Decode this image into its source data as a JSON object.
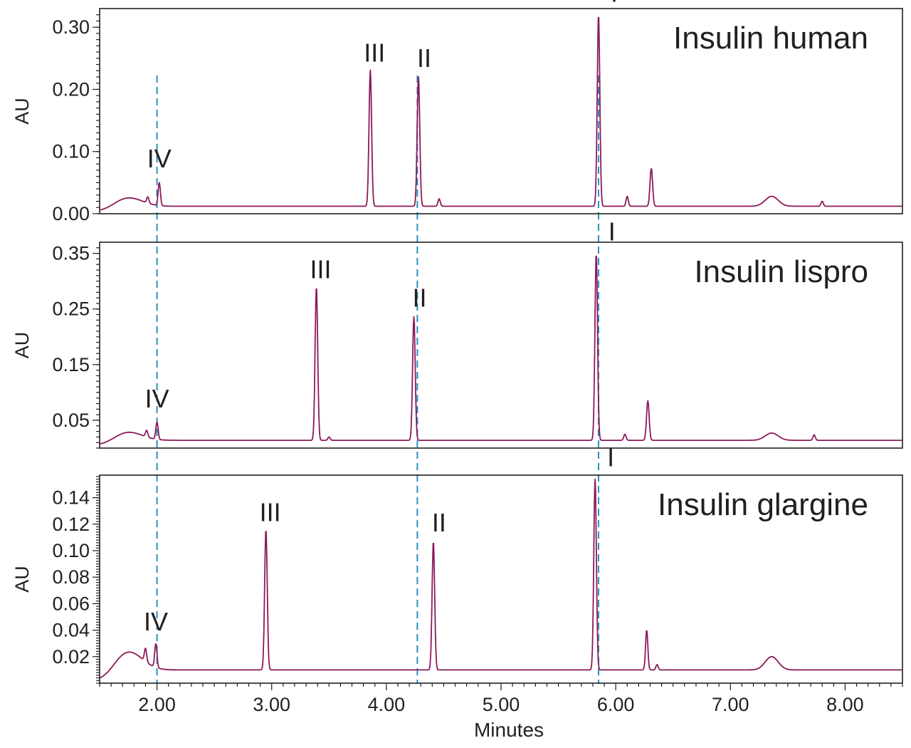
{
  "chart_data": {
    "type": "line",
    "xlabel": "Minutes",
    "xlim": [
      1.5,
      8.5
    ],
    "xticks": [
      "2.00",
      "3.00",
      "4.00",
      "5.00",
      "6.00",
      "7.00",
      "8.00"
    ],
    "reference_lines_x": [
      2.0,
      4.27,
      5.85
    ],
    "line_color": "#8b1a5a",
    "reference_color": "#2a8fc0",
    "panels": [
      {
        "title": "Insulin human",
        "ylabel": "AU",
        "ylim": [
          0.0,
          0.33
        ],
        "yticks": [
          "0.00",
          "0.10",
          "0.20",
          "0.30"
        ],
        "ytick_values": [
          0.0,
          0.1,
          0.2,
          0.3
        ],
        "baseline": 0.012,
        "hump": 0.014,
        "peaks": [
          {
            "x": 2.02,
            "y": 0.049,
            "label": "IV"
          },
          {
            "x": 1.92,
            "y": 0.022,
            "label": ""
          },
          {
            "x": 3.86,
            "y": 0.231,
            "label": "III"
          },
          {
            "x": 4.28,
            "y": 0.22,
            "label": "II"
          },
          {
            "x": 4.46,
            "y": 0.024,
            "label": ""
          },
          {
            "x": 5.85,
            "y": 0.32,
            "label": "I"
          },
          {
            "x": 6.1,
            "y": 0.028,
            "label": ""
          },
          {
            "x": 6.31,
            "y": 0.073,
            "label": ""
          },
          {
            "x": 7.36,
            "y": 0.028,
            "label": ""
          },
          {
            "x": 7.8,
            "y": 0.02,
            "label": ""
          }
        ]
      },
      {
        "title": "Insulin lispro",
        "ylabel": "AU",
        "ylim": [
          0.0,
          0.37
        ],
        "yticks": [
          "0.05",
          "0.15",
          "0.25",
          "0.35"
        ],
        "ytick_values": [
          0.05,
          0.15,
          0.25,
          0.35
        ],
        "baseline": 0.014,
        "hump": 0.015,
        "peaks": [
          {
            "x": 2.0,
            "y": 0.045,
            "label": "IV"
          },
          {
            "x": 1.91,
            "y": 0.026,
            "label": ""
          },
          {
            "x": 3.39,
            "y": 0.29,
            "label": "III"
          },
          {
            "x": 3.5,
            "y": 0.02,
            "label": ""
          },
          {
            "x": 4.24,
            "y": 0.236,
            "label": "II"
          },
          {
            "x": 5.83,
            "y": 0.35,
            "label": "I"
          },
          {
            "x": 6.08,
            "y": 0.025,
            "label": ""
          },
          {
            "x": 6.28,
            "y": 0.085,
            "label": ""
          },
          {
            "x": 7.36,
            "y": 0.027,
            "label": ""
          },
          {
            "x": 7.73,
            "y": 0.024,
            "label": ""
          }
        ]
      },
      {
        "title": "Insulin glargine",
        "ylabel": "AU",
        "ylim": [
          0.0,
          0.157
        ],
        "yticks": [
          "0.02",
          "0.04",
          "0.06",
          "0.08",
          "0.10",
          "0.12",
          "0.14"
        ],
        "ytick_values": [
          0.02,
          0.04,
          0.06,
          0.08,
          0.1,
          0.12,
          0.14
        ],
        "baseline": 0.01,
        "hump": 0.014,
        "peaks": [
          {
            "x": 1.99,
            "y": 0.028,
            "label": "IV"
          },
          {
            "x": 1.9,
            "y": 0.02,
            "label": ""
          },
          {
            "x": 2.95,
            "y": 0.116,
            "label": "III"
          },
          {
            "x": 4.41,
            "y": 0.107,
            "label": "II"
          },
          {
            "x": 5.82,
            "y": 0.154,
            "label": "I"
          },
          {
            "x": 6.27,
            "y": 0.04,
            "label": ""
          },
          {
            "x": 6.36,
            "y": 0.014,
            "label": ""
          },
          {
            "x": 7.36,
            "y": 0.02,
            "label": ""
          }
        ]
      }
    ]
  }
}
